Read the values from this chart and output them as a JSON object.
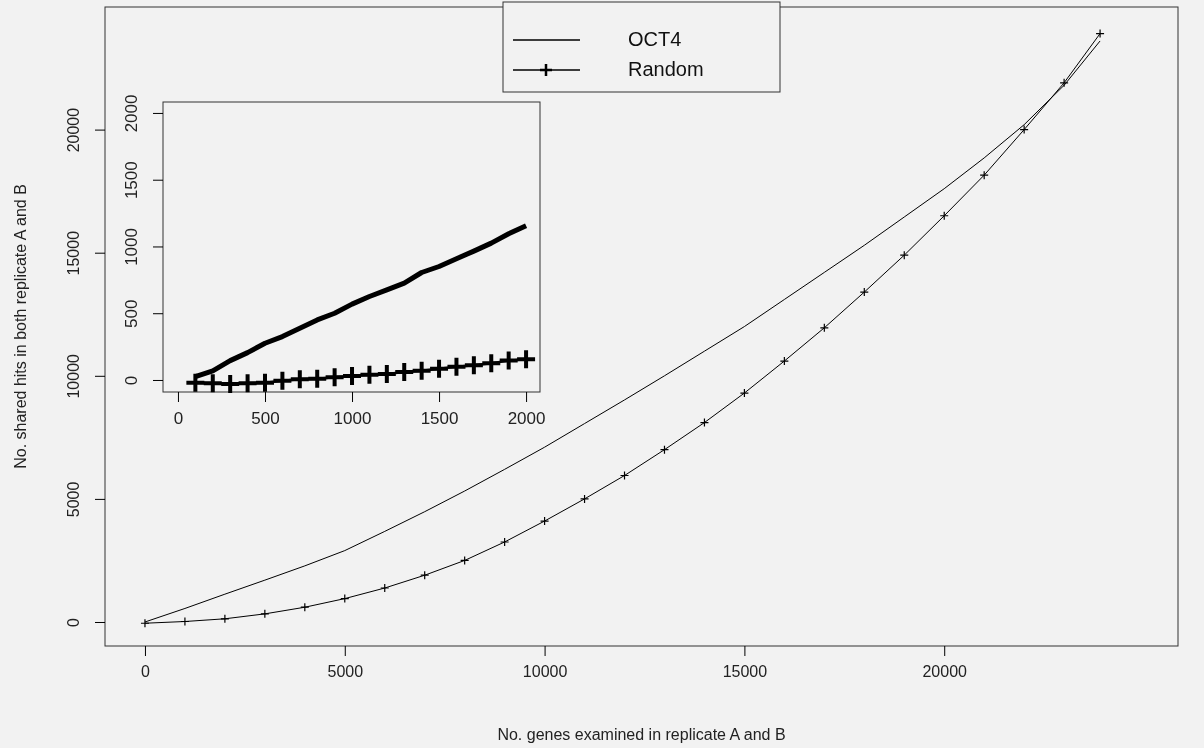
{
  "chart_data": [
    {
      "type": "line",
      "xlabel": "No. genes examined in replicate A and B",
      "ylabel": "No. shared hits in both replicate A and B",
      "x": [
        0,
        1000,
        2000,
        3000,
        4000,
        5000,
        6000,
        7000,
        8000,
        9000,
        10000,
        11000,
        12000,
        13000,
        14000,
        15000,
        16000,
        17000,
        18000,
        19000,
        20000,
        21000,
        22000,
        23000,
        23900
      ],
      "series": [
        {
          "name": "OCT4",
          "color": "#000000",
          "marker": "none",
          "values": [
            0,
            550,
            1130,
            1700,
            2280,
            2900,
            3680,
            4480,
            5320,
            6200,
            7100,
            8060,
            9020,
            10000,
            11000,
            12000,
            13100,
            14200,
            15300,
            16450,
            17600,
            18850,
            20200,
            21800,
            23600
          ]
        },
        {
          "name": "Random",
          "color": "#000000",
          "marker": "cross",
          "values": [
            -50,
            20,
            130,
            330,
            600,
            950,
            1380,
            1900,
            2500,
            3250,
            4100,
            5000,
            5950,
            7000,
            8100,
            9300,
            10600,
            11950,
            13400,
            14900,
            16500,
            18150,
            20000,
            21900,
            23900
          ]
        }
      ],
      "xlim": [
        -1000,
        25850
      ],
      "xticks": [
        0,
        5000,
        10000,
        15000,
        20000
      ],
      "ylim": [
        -975,
        24980
      ],
      "yticks": [
        0,
        5000,
        10000,
        15000,
        20000
      ],
      "legend": "top"
    },
    {
      "type": "line",
      "x": [
        100,
        200,
        300,
        400,
        500,
        600,
        700,
        800,
        900,
        1000,
        1100,
        1200,
        1300,
        1400,
        1500,
        1600,
        1700,
        1800,
        1900,
        2000
      ],
      "series": [
        {
          "color": "#000000",
          "marker": "none",
          "values": [
            25,
            68,
            145,
            205,
            275,
            325,
            388,
            450,
            500,
            568,
            625,
            675,
            725,
            805,
            850,
            908,
            965,
            1025,
            1095,
            1155
          ]
        },
        {
          "color": "#000000",
          "marker": "cross",
          "values": [
            -20,
            -25,
            -30,
            -25,
            -20,
            -5,
            5,
            10,
            20,
            30,
            40,
            45,
            60,
            70,
            85,
            100,
            110,
            125,
            145,
            155
          ]
        }
      ],
      "xlim": [
        -86,
        2080
      ],
      "xticks": [
        0,
        500,
        1000,
        1500,
        2000
      ],
      "ylim": [
        -90,
        2082
      ],
      "yticks": [
        0,
        500,
        1000,
        1500,
        2000
      ]
    }
  ]
}
